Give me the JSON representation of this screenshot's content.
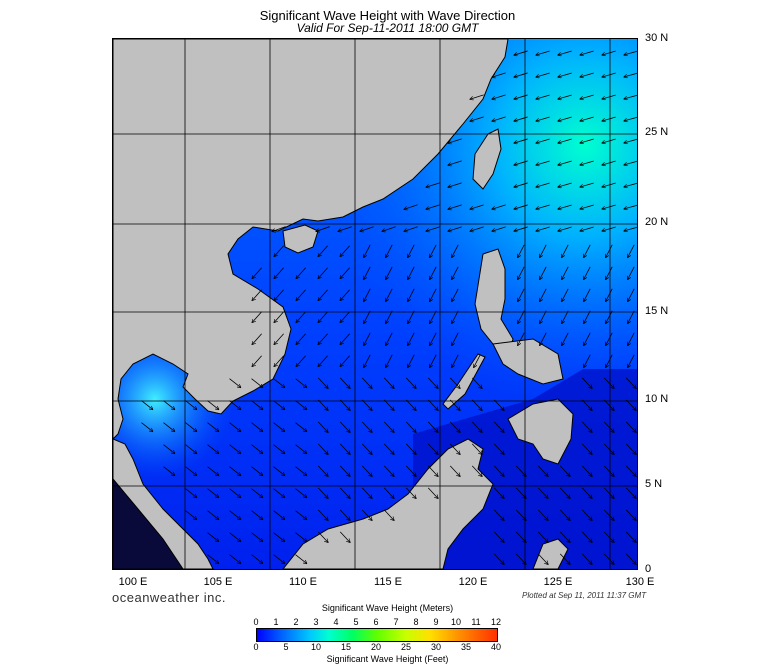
{
  "header": {
    "title": "Significant Wave Height with Wave Direction",
    "subtitle": "Valid For Sep-11-2011 18:00 GMT"
  },
  "map": {
    "lon_range": [
      99,
      130
    ],
    "lat_range": [
      0,
      30
    ],
    "lat_labels": [
      "30 N",
      "25 N",
      "20 N",
      "15 N",
      "10 N",
      "5 N",
      "0"
    ],
    "lon_labels": [
      "100 E",
      "105 E",
      "110 E",
      "115 E",
      "120 E",
      "125 E",
      "130 E"
    ],
    "land_color": "#c0c0c0",
    "sea_color_low": "#0000ff",
    "sea_color_mid": "#0050ff"
  },
  "footer": {
    "logo": "oceanweather inc.",
    "plotted": "Plotted at Sep 11, 2011 11:37 GMT"
  },
  "legend": {
    "title_meters": "Significant Wave Height (Meters)",
    "title_feet": "Significant Wave Height (Feet)",
    "meter_ticks": [
      "0",
      "1",
      "2",
      "3",
      "4",
      "5",
      "6",
      "7",
      "8",
      "9",
      "10",
      "11",
      "12"
    ],
    "feet_ticks": [
      "0",
      "5",
      "10",
      "15",
      "20",
      "25",
      "30",
      "35",
      "40"
    ]
  }
}
